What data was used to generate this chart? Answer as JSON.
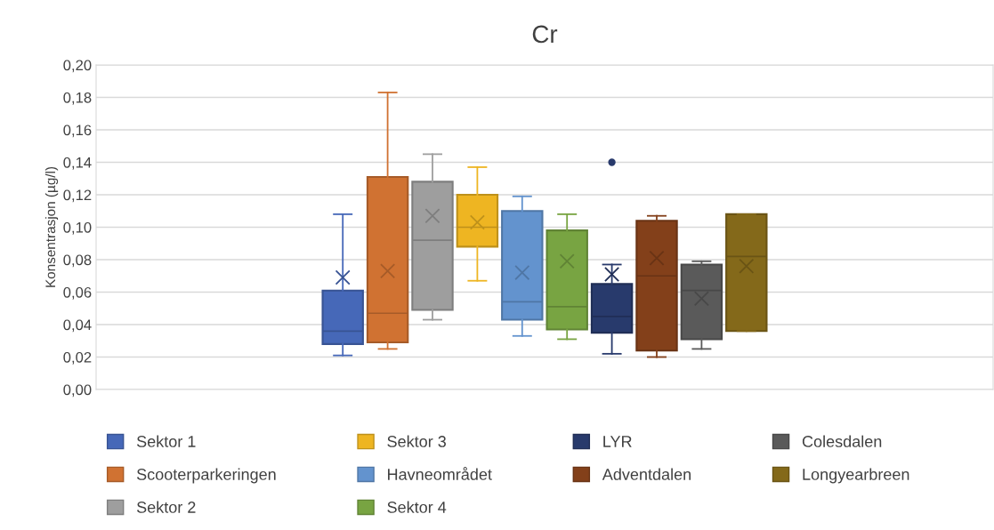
{
  "chart_data": {
    "type": "box",
    "title": "Cr",
    "ylabel": "Konsentrasjon (µg/l)",
    "categories": [
      null
    ],
    "ylim": [
      0,
      0.2
    ],
    "yticks": [
      {
        "value": 0,
        "label": "0,00"
      },
      {
        "value": 0.02,
        "label": "0,02"
      },
      {
        "value": 0.04,
        "label": "0,04"
      },
      {
        "value": 0.06,
        "label": "0,06"
      },
      {
        "value": 0.08,
        "label": "0,08"
      },
      {
        "value": 0.1,
        "label": "0,10"
      },
      {
        "value": 0.12,
        "label": "0,12"
      },
      {
        "value": 0.14,
        "label": "0,14"
      },
      {
        "value": 0.16,
        "label": "0,16"
      },
      {
        "value": 0.18,
        "label": "0,18"
      },
      {
        "value": 0.2,
        "label": "0,20"
      }
    ],
    "grid": "y",
    "legend": "bottom",
    "tick_labels": "y",
    "series": [
      {
        "name": "Sektor 1",
        "color": "#4668b8",
        "boxes": [
          {
            "low": 0.021,
            "q1": 0.028,
            "median": 0.036,
            "q3": 0.061,
            "high": 0.108,
            "mean": 0.069
          }
        ]
      },
      {
        "name": "Scooterparkeringen",
        "color": "#d07232",
        "boxes": [
          {
            "low": 0.025,
            "q1": 0.029,
            "median": 0.047,
            "q3": 0.131,
            "high": 0.183,
            "mean": 0.073
          }
        ]
      },
      {
        "name": "Sektor 2",
        "color": "#9e9e9e",
        "boxes": [
          {
            "low": 0.043,
            "q1": 0.049,
            "median": 0.092,
            "q3": 0.128,
            "high": 0.145,
            "mean": 0.107
          }
        ]
      },
      {
        "name": "Sektor 3",
        "color": "#eeb522",
        "boxes": [
          {
            "low": 0.067,
            "q1": 0.088,
            "median": 0.1,
            "q3": 0.12,
            "high": 0.137,
            "mean": 0.103
          }
        ]
      },
      {
        "name": "Havneområdet",
        "color": "#6393ce",
        "boxes": [
          {
            "low": 0.033,
            "q1": 0.043,
            "median": 0.054,
            "q3": 0.11,
            "high": 0.119,
            "mean": 0.072
          }
        ]
      },
      {
        "name": "Sektor 4",
        "color": "#78a442",
        "boxes": [
          {
            "low": 0.031,
            "q1": 0.037,
            "median": 0.051,
            "q3": 0.098,
            "high": 0.108,
            "mean": 0.079
          }
        ]
      },
      {
        "name": "LYR",
        "color": "#283a6c",
        "boxes": [
          {
            "low": 0.022,
            "q1": 0.035,
            "median": 0.045,
            "q3": 0.065,
            "high": 0.077,
            "mean": 0.071,
            "outliers": [
              0.14
            ]
          }
        ]
      },
      {
        "name": "Adventdalen",
        "color": "#83401a",
        "boxes": [
          {
            "low": 0.02,
            "q1": 0.024,
            "median": 0.07,
            "q3": 0.104,
            "high": 0.107,
            "mean": 0.081
          }
        ]
      },
      {
        "name": "Colesdalen",
        "color": "#5a5a5a",
        "boxes": [
          {
            "low": 0.025,
            "q1": 0.031,
            "median": 0.061,
            "q3": 0.077,
            "high": 0.079,
            "mean": 0.056
          }
        ]
      },
      {
        "name": "Longyearbreen",
        "color": "#84691a",
        "boxes": [
          {
            "low": 0.036,
            "q1": 0.036,
            "median": 0.082,
            "q3": 0.108,
            "high": 0.108,
            "mean": 0.076
          }
        ]
      }
    ]
  }
}
